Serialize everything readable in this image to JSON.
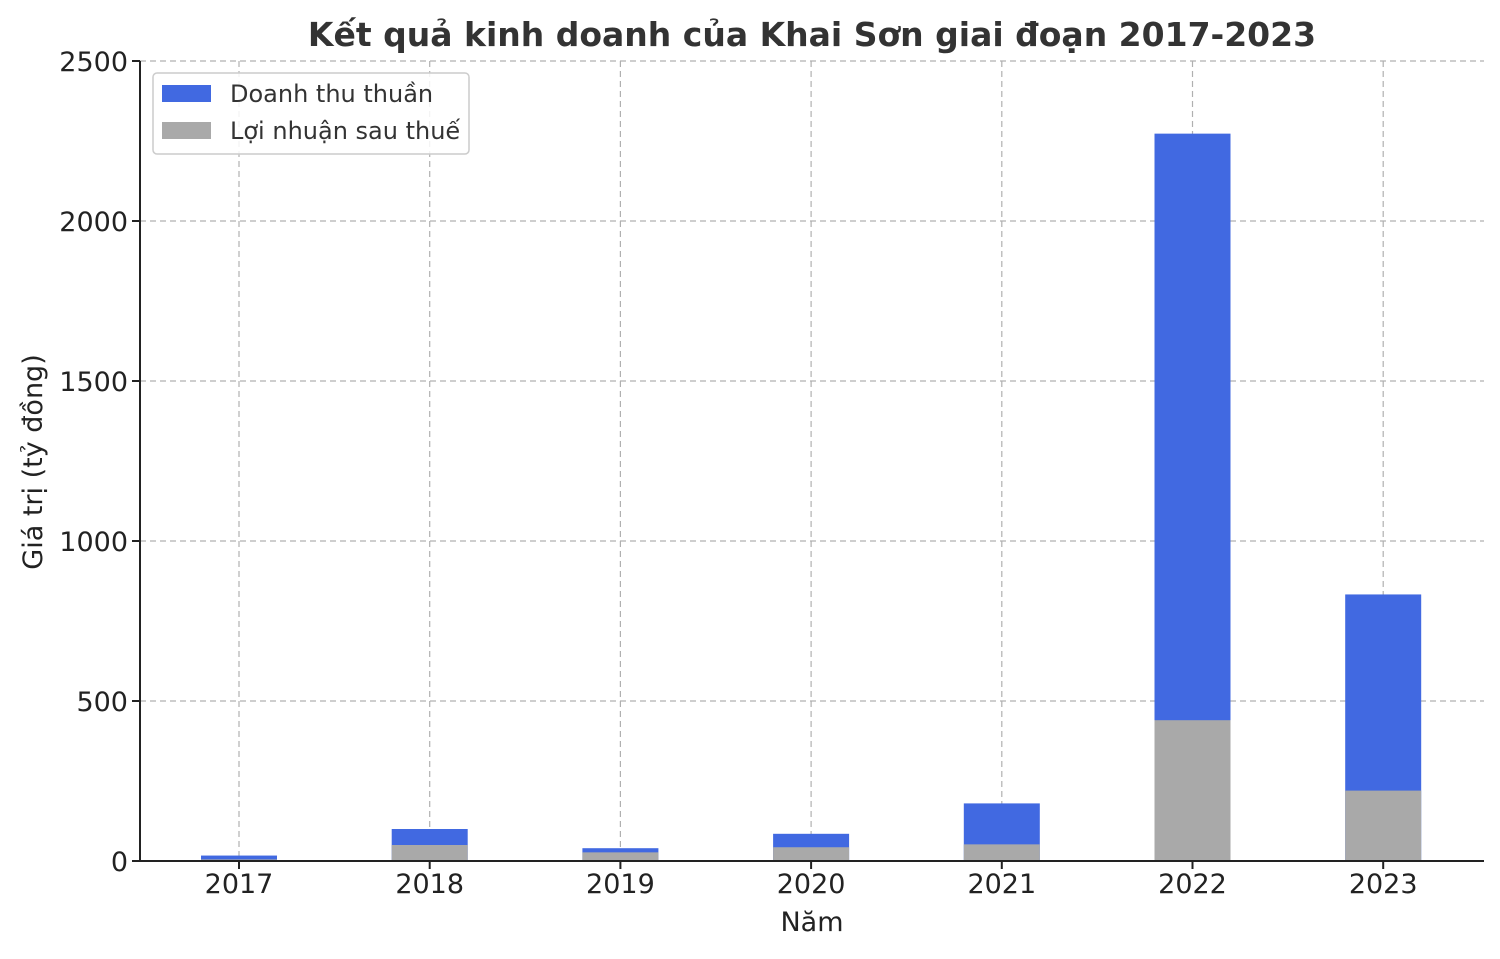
{
  "chart_data": {
    "type": "bar",
    "title": "Kết quả kinh doanh của Khai Sơn giai đoạn 2017-2023",
    "xlabel": "Năm",
    "ylabel": "Giá trị (tỷ đồng)",
    "categories": [
      "2017",
      "2018",
      "2019",
      "2020",
      "2021",
      "2022",
      "2023"
    ],
    "series": [
      {
        "name": "Doanh thu thuần",
        "color": "#4169e1",
        "values": [
          17,
          100,
          40,
          85,
          180,
          2273,
          833
        ]
      },
      {
        "name": "Lợi nhuận sau thuế",
        "color": "#a9a9a9",
        "values": [
          5,
          50,
          27,
          43,
          52,
          440,
          220
        ]
      }
    ],
    "ylim": [
      0,
      2500
    ],
    "yticks": [
      0,
      500,
      1000,
      1500,
      2000,
      2500
    ],
    "grid": true,
    "legend_position": "top-left",
    "overlay": true
  }
}
